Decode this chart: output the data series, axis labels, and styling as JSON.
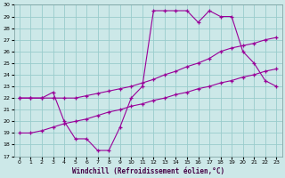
{
  "xlabel": "Windchill (Refroidissement éolien,°C)",
  "bg_color": "#cce8e8",
  "line_color": "#990099",
  "grid_color": "#99cccc",
  "xlim": [
    -0.5,
    23.5
  ],
  "ylim": [
    17,
    30
  ],
  "xticks": [
    0,
    1,
    2,
    3,
    4,
    5,
    6,
    7,
    8,
    9,
    10,
    11,
    12,
    13,
    14,
    15,
    16,
    17,
    18,
    19,
    20,
    21,
    22,
    23
  ],
  "yticks": [
    17,
    18,
    19,
    20,
    21,
    22,
    23,
    24,
    25,
    26,
    27,
    28,
    29,
    30
  ],
  "line1_x": [
    0,
    1,
    2,
    3,
    4,
    5,
    6,
    7,
    8,
    9,
    10,
    11,
    12,
    13,
    14,
    15,
    16,
    17,
    18,
    19,
    20,
    21,
    22,
    23
  ],
  "line1_y": [
    22,
    22,
    22,
    22.5,
    20,
    18.5,
    18.5,
    17.5,
    17.5,
    19.5,
    22,
    23,
    29.5,
    29.5,
    29.5,
    29.5,
    28.5,
    29.5,
    29,
    29,
    26,
    25,
    23.5,
    23
  ],
  "line2_x": [
    0,
    1,
    2,
    3,
    4,
    5,
    6,
    7,
    8,
    9,
    10,
    11,
    12,
    13,
    14,
    15,
    16,
    17,
    18,
    19,
    20,
    21,
    22,
    23
  ],
  "line2_y": [
    22,
    22,
    22,
    22,
    22,
    22,
    22.2,
    22.4,
    22.6,
    22.8,
    23,
    23.3,
    23.6,
    24,
    24.3,
    24.7,
    25,
    25.4,
    26,
    26.3,
    26.5,
    26.7,
    27,
    27.2
  ],
  "line3_x": [
    0,
    1,
    2,
    3,
    4,
    5,
    6,
    7,
    8,
    9,
    10,
    11,
    12,
    13,
    14,
    15,
    16,
    17,
    18,
    19,
    20,
    21,
    22,
    23
  ],
  "line3_y": [
    19,
    19,
    19.2,
    19.5,
    19.8,
    20,
    20.2,
    20.5,
    20.8,
    21,
    21.3,
    21.5,
    21.8,
    22,
    22.3,
    22.5,
    22.8,
    23,
    23.3,
    23.5,
    23.8,
    24,
    24.3,
    24.5
  ]
}
